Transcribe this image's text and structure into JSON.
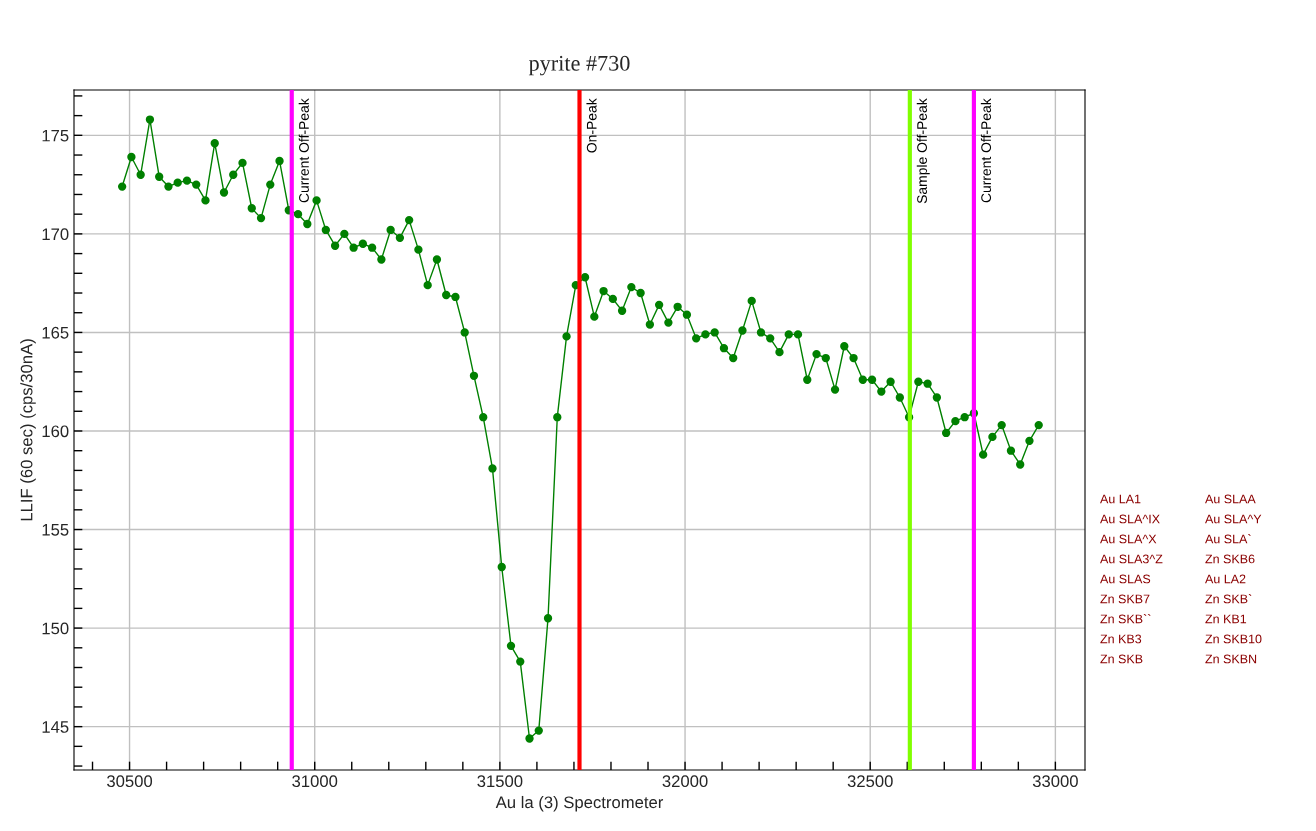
{
  "chart_data": {
    "type": "line",
    "title": "pyrite #730",
    "xlabel": "Au la (3) Spectrometer",
    "ylabel": "LLIF (60 sec) (cps/30nA)",
    "x": [
      30480,
      30505,
      30530,
      30555,
      30580,
      30605,
      30630,
      30655,
      30680,
      30705,
      30730,
      30755,
      30780,
      30805,
      30830,
      30855,
      30880,
      30905,
      30930,
      30955,
      30980,
      31005,
      31030,
      31055,
      31080,
      31105,
      31130,
      31155,
      31180,
      31205,
      31230,
      31255,
      31280,
      31305,
      31330,
      31355,
      31380,
      31405,
      31430,
      31455,
      31480,
      31505,
      31530,
      31555,
      31580,
      31605,
      31630,
      31655,
      31680,
      31705,
      31730,
      31755,
      31780,
      31805,
      31830,
      31855,
      31880,
      31905,
      31930,
      31955,
      31980,
      32005,
      32030,
      32055,
      32080,
      32105,
      32130,
      32155,
      32180,
      32205,
      32230,
      32255,
      32280,
      32305,
      32330,
      32355,
      32380,
      32405,
      32430,
      32455,
      32480,
      32505,
      32530,
      32555,
      32580,
      32605,
      32630,
      32655,
      32680,
      32705,
      32730,
      32755,
      32780,
      32805,
      32830,
      32855,
      32880,
      32905,
      32930,
      32955
    ],
    "series": [
      {
        "color": "#008000",
        "values": [
          172.4,
          173.9,
          173.0,
          175.8,
          172.9,
          172.4,
          172.6,
          172.7,
          172.5,
          171.7,
          174.6,
          172.1,
          173.0,
          173.6,
          171.3,
          170.8,
          172.5,
          173.7,
          171.2,
          171.0,
          170.5,
          171.7,
          170.2,
          169.4,
          170.0,
          169.3,
          169.5,
          169.3,
          168.7,
          170.2,
          169.8,
          170.7,
          169.2,
          167.4,
          168.7,
          166.9,
          166.8,
          165.0,
          162.8,
          160.7,
          158.1,
          153.1,
          149.1,
          148.3,
          144.4,
          144.8,
          150.5,
          160.7,
          164.8,
          167.4,
          167.8,
          165.8,
          167.1,
          166.7,
          166.1,
          167.3,
          167.0,
          165.4,
          166.4,
          165.5,
          166.3,
          165.9,
          164.7,
          164.9,
          165.0,
          164.2,
          163.7,
          165.1,
          166.6,
          165.0,
          164.7,
          164.0,
          164.9,
          164.9,
          162.6,
          163.9,
          163.7,
          162.1,
          164.3,
          163.7,
          162.6,
          162.6,
          162.0,
          162.5,
          161.7,
          160.7,
          162.5,
          162.4,
          161.7,
          159.9,
          160.5,
          160.7,
          160.9,
          158.8,
          159.7,
          160.3,
          159.0,
          158.3,
          159.5,
          160.3
        ]
      }
    ],
    "marker": "circle",
    "line_style": "solid",
    "xlim": [
      30350,
      33080
    ],
    "ylim": [
      142.8,
      177.3
    ],
    "xticks": [
      {
        "value": 30400,
        "label": null
      },
      30500,
      {
        "value": 30600,
        "label": null
      },
      {
        "value": 30700,
        "label": null
      },
      {
        "value": 30800,
        "label": null
      },
      {
        "value": 30900,
        "label": null
      },
      31000,
      {
        "value": 31100,
        "label": null
      },
      {
        "value": 31200,
        "label": null
      },
      {
        "value": 31300,
        "label": null
      },
      {
        "value": 31400,
        "label": null
      },
      31500,
      {
        "value": 31600,
        "label": null
      },
      {
        "value": 31700,
        "label": null
      },
      {
        "value": 31800,
        "label": null
      },
      {
        "value": 31900,
        "label": null
      },
      32000,
      {
        "value": 32100,
        "label": null
      },
      {
        "value": 32200,
        "label": null
      },
      {
        "value": 32300,
        "label": null
      },
      {
        "value": 32400,
        "label": null
      },
      32500,
      {
        "value": 32600,
        "label": null
      },
      {
        "value": 32700,
        "label": null
      },
      {
        "value": 32800,
        "label": null
      },
      {
        "value": 32900,
        "label": null
      },
      33000
    ],
    "yticks": [
      {
        "value": 143,
        "label": null
      },
      {
        "value": 144,
        "label": null
      },
      145,
      {
        "value": 146,
        "label": null
      },
      {
        "value": 147,
        "label": null
      },
      {
        "value": 148,
        "label": null
      },
      {
        "value": 149,
        "label": null
      },
      150,
      {
        "value": 151,
        "label": null
      },
      {
        "value": 152,
        "label": null
      },
      {
        "value": 153,
        "label": null
      },
      {
        "value": 154,
        "label": null
      },
      155,
      {
        "value": 156,
        "label": null
      },
      {
        "value": 157,
        "label": null
      },
      {
        "value": 158,
        "label": null
      },
      {
        "value": 159,
        "label": null
      },
      160,
      {
        "value": 161,
        "label": null
      },
      {
        "value": 162,
        "label": null
      },
      {
        "value": 163,
        "label": null
      },
      {
        "value": 164,
        "label": null
      },
      165,
      {
        "value": 166,
        "label": null
      },
      {
        "value": 167,
        "label": null
      },
      {
        "value": 168,
        "label": null
      },
      {
        "value": 169,
        "label": null
      },
      170,
      {
        "value": 171,
        "label": null
      },
      {
        "value": 172,
        "label": null
      },
      {
        "value": 173,
        "label": null
      },
      {
        "value": 174,
        "label": null
      },
      175,
      {
        "value": 176,
        "label": null
      },
      {
        "value": 177,
        "label": null
      }
    ],
    "grid": true,
    "ref_lines": [
      {
        "axis": "x",
        "value": 31715,
        "label": "On-Peak",
        "color": "#ff0000"
      },
      {
        "axis": "x",
        "value": 32607,
        "label": "Sample Off-Peak",
        "color": "#80ff00"
      },
      {
        "axis": "x",
        "value": 30938,
        "label": "Current Off-Peak",
        "color": "#ff00ff"
      },
      {
        "axis": "x",
        "value": 32780,
        "label": "Current Off-Peak",
        "color": "#ff00ff"
      }
    ],
    "annotations": [
      "Au LA1",
      "Au SLAA",
      "Au SLA^IX",
      "Au SLA^Y",
      "Au SLA^X",
      "Au SLA`",
      "Au SLA3^Z",
      "Zn SKB6",
      "Au SLAS",
      "Au LA2",
      "Zn SKB7",
      "Zn SKB`",
      "Zn SKB``",
      "Zn KB1",
      "Zn KB3",
      "Zn SKB10",
      "Zn SKB",
      "Zn SKBN"
    ]
  }
}
